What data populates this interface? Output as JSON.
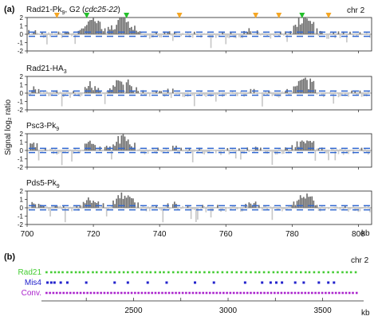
{
  "figure": {
    "panel_a_letter": "(a)",
    "panel_b_letter": "(b)",
    "chromosome_a": "chr 2",
    "chromosome_b": "chr 2",
    "y_axis_label": "Signal log₂ ratio",
    "kb_unit_a": "kb",
    "kb_unit_b": "kb"
  },
  "colors": {
    "enriched_bar": "#6e6e6e",
    "depleted_bar": "#c8c8c8",
    "dash_line": "#2f66d0",
    "triangle_green": "#22c02a",
    "triangle_orange": "#f5a623",
    "rad21_dots": "#44cc33",
    "mis4_dots": "#2222cc",
    "conv_dots": "#aa22cc"
  },
  "chart_data": [
    {
      "type": "bar",
      "name_parts": [
        "Rad21-Pk",
        "9",
        ", G2 (",
        "cdc25-22",
        ")"
      ],
      "x_range_kb": [
        700,
        804
      ],
      "ylim": [
        -2,
        2
      ],
      "yticks": [
        -2,
        -1,
        0,
        1,
        2
      ],
      "xticks": [
        700,
        720,
        740,
        760,
        780,
        800
      ],
      "threshold_dashes": [
        0.25,
        -0.25
      ],
      "markers": [
        {
          "kb": 709,
          "color": "orange"
        },
        {
          "kb": 718,
          "color": "green"
        },
        {
          "kb": 730,
          "color": "green"
        },
        {
          "kb": 746,
          "color": "orange"
        },
        {
          "kb": 769,
          "color": "orange"
        },
        {
          "kb": 776,
          "color": "orange"
        },
        {
          "kb": 783,
          "color": "green"
        },
        {
          "kb": 791,
          "color": "orange"
        }
      ],
      "peaks": [
        {
          "kb": 702,
          "width": 1.5,
          "height": 0.8
        },
        {
          "kb": 718.5,
          "width": 1.8,
          "height": 1.3
        },
        {
          "kb": 721,
          "width": 2.5,
          "height": 1.4
        },
        {
          "kb": 729,
          "width": 3.5,
          "height": 1.9
        },
        {
          "kb": 744,
          "width": 1.5,
          "height": 0.4
        },
        {
          "kb": 768,
          "width": 2.0,
          "height": 0.5
        },
        {
          "kb": 783,
          "width": 3.0,
          "height": 1.8
        },
        {
          "kb": 785.5,
          "width": 1.5,
          "height": 1.2
        }
      ]
    },
    {
      "type": "bar",
      "name_parts": [
        "Rad21-HA",
        "3"
      ],
      "x_range_kb": [
        700,
        804
      ],
      "ylim": [
        -2,
        2
      ],
      "yticks": [
        -2,
        -1,
        0,
        1,
        2
      ],
      "xticks": [
        700,
        720,
        740,
        760,
        780,
        800
      ],
      "threshold_dashes": [
        0.25,
        -0.25
      ],
      "markers": [],
      "peaks": [
        {
          "kb": 702,
          "width": 1.5,
          "height": 0.6
        },
        {
          "kb": 718.5,
          "width": 1.8,
          "height": 0.8
        },
        {
          "kb": 721,
          "width": 2.0,
          "height": 0.7
        },
        {
          "kb": 729,
          "width": 3.5,
          "height": 1.7
        },
        {
          "kb": 744,
          "width": 1.5,
          "height": 0.5
        },
        {
          "kb": 768,
          "width": 2.0,
          "height": 0.4
        },
        {
          "kb": 783,
          "width": 3.0,
          "height": 1.6
        },
        {
          "kb": 785.5,
          "width": 1.5,
          "height": 1.2
        }
      ]
    },
    {
      "type": "bar",
      "name_parts": [
        "Psc3-Pk",
        "9"
      ],
      "x_range_kb": [
        700,
        804
      ],
      "ylim": [
        -2,
        2
      ],
      "yticks": [
        -2,
        -1,
        0,
        1,
        2
      ],
      "xticks": [
        700,
        720,
        740,
        760,
        780,
        800
      ],
      "threshold_dashes": [
        0.25,
        -0.25
      ],
      "markers": [],
      "peaks": [
        {
          "kb": 702,
          "width": 1.5,
          "height": 0.9
        },
        {
          "kb": 718.5,
          "width": 1.8,
          "height": 0.8
        },
        {
          "kb": 721,
          "width": 2.0,
          "height": 0.6
        },
        {
          "kb": 729,
          "width": 3.5,
          "height": 1.6
        },
        {
          "kb": 744,
          "width": 1.5,
          "height": 0.5
        },
        {
          "kb": 768,
          "width": 2.0,
          "height": 0.4
        },
        {
          "kb": 783,
          "width": 3.0,
          "height": 1.1
        },
        {
          "kb": 785.5,
          "width": 1.5,
          "height": 0.7
        }
      ]
    },
    {
      "type": "bar",
      "name_parts": [
        "Pds5-Pk",
        "9"
      ],
      "x_range_kb": [
        700,
        804
      ],
      "ylim": [
        -2,
        2
      ],
      "yticks": [
        -2,
        -1,
        0,
        1,
        2
      ],
      "xticks": [
        700,
        720,
        740,
        760,
        780,
        800
      ],
      "xtick_labels": [
        "700",
        "720",
        "740",
        "760",
        "780",
        "800"
      ],
      "threshold_dashes": [
        0.25,
        -0.25
      ],
      "markers": [],
      "peaks": [
        {
          "kb": 702,
          "width": 1.5,
          "height": 0.5
        },
        {
          "kb": 718.5,
          "width": 1.8,
          "height": 0.8
        },
        {
          "kb": 721,
          "width": 2.0,
          "height": 0.6
        },
        {
          "kb": 729,
          "width": 3.5,
          "height": 1.6
        },
        {
          "kb": 744,
          "width": 1.5,
          "height": 0.5
        },
        {
          "kb": 768,
          "width": 2.0,
          "height": 0.5
        },
        {
          "kb": 783,
          "width": 3.0,
          "height": 1.3
        },
        {
          "kb": 785.5,
          "width": 1.5,
          "height": 1.0
        }
      ]
    },
    {
      "type": "scatter",
      "x_range_kb": [
        2030,
        3700
      ],
      "xticks": [
        2500,
        3000,
        3500
      ],
      "xtick_labels": [
        "2500",
        "3000",
        "3500"
      ],
      "tracks": [
        {
          "name": "Rad21",
          "color": "rad21",
          "kb": [
            2040,
            2065,
            2085,
            2105,
            2125,
            2150,
            2172,
            2195,
            2215,
            2235,
            2260,
            2285,
            2305,
            2330,
            2355,
            2378,
            2400,
            2425,
            2448,
            2470,
            2495,
            2520,
            2545,
            2570,
            2590,
            2615,
            2640,
            2660,
            2685,
            2710,
            2735,
            2755,
            2780,
            2805,
            2830,
            2850,
            2875,
            2900,
            2922,
            2945,
            2970,
            2995,
            3020,
            3045,
            3070,
            3095,
            3120,
            3145,
            3165,
            3190,
            3215,
            3240,
            3262,
            3285,
            3310,
            3335,
            3360,
            3385,
            3410,
            3430,
            3455,
            3480,
            3505,
            3530,
            3555,
            3580,
            3605,
            3628,
            3650,
            3675
          ]
        },
        {
          "name": "Mis4",
          "color": "mis4",
          "kb": [
            2045,
            2065,
            2082,
            2115,
            2150,
            2250,
            2400,
            2470,
            2575,
            2675,
            2825,
            2925,
            3090,
            3180,
            3225,
            3255,
            3285,
            3355,
            3400,
            3480,
            3530,
            3560
          ]
        },
        {
          "name": "Conv.",
          "color": "conv",
          "kb": [
            2040,
            2058,
            2076,
            2094,
            2112,
            2130,
            2148,
            2166,
            2184,
            2202,
            2220,
            2238,
            2256,
            2274,
            2292,
            2310,
            2328,
            2346,
            2364,
            2382,
            2400,
            2418,
            2436,
            2454,
            2472,
            2490,
            2508,
            2526,
            2544,
            2562,
            2580,
            2598,
            2616,
            2634,
            2652,
            2670,
            2688,
            2706,
            2724,
            2742,
            2760,
            2778,
            2796,
            2814,
            2832,
            2850,
            2868,
            2886,
            2904,
            2922,
            2940,
            2958,
            2976,
            2994,
            3012,
            3030,
            3048,
            3066,
            3084,
            3102,
            3120,
            3138,
            3156,
            3174,
            3192,
            3210,
            3228,
            3246,
            3264,
            3282,
            3300,
            3318,
            3336,
            3354,
            3372,
            3390,
            3408,
            3426,
            3444,
            3462,
            3480,
            3498,
            3516,
            3534,
            3552,
            3570,
            3588,
            3606,
            3624,
            3642,
            3660,
            3680
          ]
        }
      ]
    }
  ]
}
